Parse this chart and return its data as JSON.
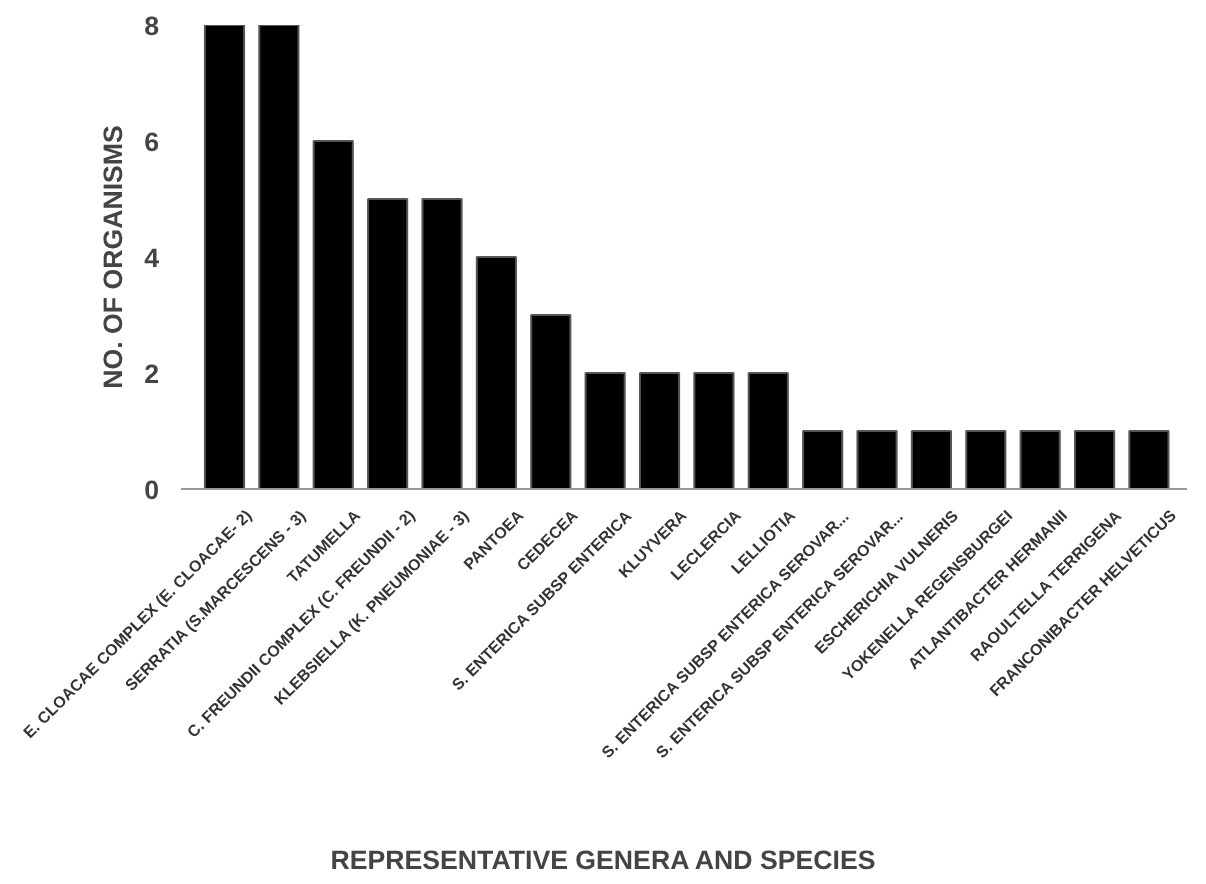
{
  "chart_data": {
    "type": "bar",
    "xlabel": "REPRESENTATIVE GENERA AND SPECIES",
    "ylabel": "NO. OF ORGANISMS",
    "categories": [
      "E. CLOACAE COMPLEX (E. CLOACAE- 2)",
      "SERRATIA (S.MARCESCENS - 3)",
      "TATUMELLA",
      "C. FREUNDII COMPLEX (C. FREUNDII - 2)",
      "KLEBSIELLA (K. PNEUMONIAE - 3)",
      "PANTOEA",
      "CEDECEA",
      "S. ENTERICA SUBSP ENTERICA",
      "KLUYVERA",
      "LECLERCIA",
      "LELLIOTIA",
      "S. ENTERICA SUBSP ENTERICA SEROVAR...",
      "S. ENTERICA SUBSP ENTERICA SEROVAR...",
      "ESCHERICHIA VULNERIS",
      "YOKENELLA REGENSBURGEI",
      "ATLANTIBACTER HERMANII",
      "RAOULTELLA TERRIGENA",
      "FRANCONIBACTER HELVETICUS"
    ],
    "values": [
      8,
      8,
      6,
      5,
      5,
      4,
      3,
      2,
      2,
      2,
      2,
      1,
      1,
      1,
      1,
      1,
      1,
      1
    ],
    "color": "#000000",
    "ylim": [
      0,
      8
    ],
    "yticks": [
      0,
      2,
      4,
      6,
      8
    ],
    "grid": false
  }
}
